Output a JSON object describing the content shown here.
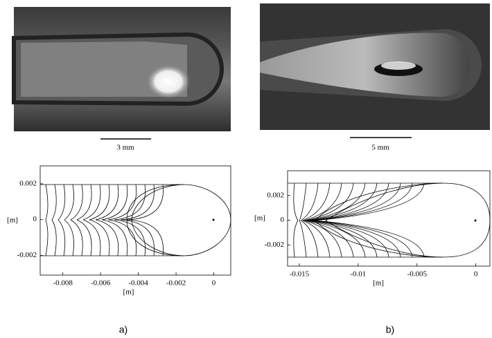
{
  "panels": [
    {
      "label": "a)",
      "scale_label": "3 mm",
      "plot": {
        "xlabel": "[m]",
        "ylabel": "[m]",
        "xlim": [
          -0.0092,
          0.0009
        ],
        "ylim": [
          -0.0031,
          0.003
        ],
        "xticks": [
          -0.008,
          -0.006,
          -0.004,
          -0.002,
          0
        ],
        "yticks": [
          -0.002,
          0,
          0.002
        ]
      }
    },
    {
      "label": "b)",
      "scale_label": "5 mm",
      "plot": {
        "xlabel": "[m]",
        "ylabel": "[m]",
        "xlim": [
          -0.016,
          0.0012
        ],
        "ylim": [
          -0.0037,
          0.004
        ],
        "xticks": [
          -0.015,
          -0.01,
          -0.005,
          0
        ],
        "yticks": [
          -0.002,
          0,
          0.002
        ]
      }
    }
  ]
}
